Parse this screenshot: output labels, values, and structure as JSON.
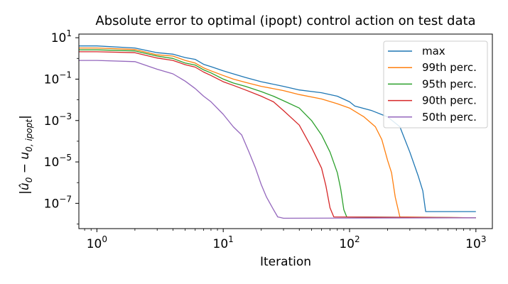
{
  "chart_data": {
    "type": "line",
    "title": "Absolute error to optimal (ipopt) control action on test data",
    "xlabel": "Iteration",
    "ylabel_parts": {
      "prefix": "|",
      "base1": "û",
      "sub1": "0",
      "minus": " − ",
      "base2": "u",
      "sub2": "0, ipopt",
      "suffix": "|"
    },
    "xscale": "log",
    "yscale": "log",
    "xlim": [
      0.72,
      1350
    ],
    "ylim": [
      6e-09,
      15
    ],
    "grid": false,
    "legend_position": "top-right",
    "x_ticks": [
      {
        "value": 1,
        "base": "10",
        "exp": "0"
      },
      {
        "value": 10,
        "base": "10",
        "exp": "1"
      },
      {
        "value": 100,
        "base": "10",
        "exp": "2"
      },
      {
        "value": 1000,
        "base": "10",
        "exp": "3"
      }
    ],
    "y_ticks": [
      {
        "value": 10,
        "base": "10",
        "exp": "1"
      },
      {
        "value": 0.1,
        "base": "10",
        "exp": "−1"
      },
      {
        "value": 0.001,
        "base": "10",
        "exp": "−3"
      },
      {
        "value": 1e-05,
        "base": "10",
        "exp": "−5"
      },
      {
        "value": 1e-07,
        "base": "10",
        "exp": "−7"
      }
    ],
    "series": [
      {
        "name": "max",
        "color": "#1f77b4",
        "points": [
          [
            0.72,
            4.0
          ],
          [
            1,
            4.0
          ],
          [
            2,
            3.2
          ],
          [
            3,
            1.9
          ],
          [
            4,
            1.6
          ],
          [
            5,
            1.1
          ],
          [
            6,
            0.9
          ],
          [
            7,
            0.52
          ],
          [
            8,
            0.4
          ],
          [
            10,
            0.25
          ],
          [
            12,
            0.18
          ],
          [
            15,
            0.12
          ],
          [
            20,
            0.075
          ],
          [
            30,
            0.045
          ],
          [
            40,
            0.03
          ],
          [
            60,
            0.022
          ],
          [
            80,
            0.015
          ],
          [
            100,
            0.008
          ],
          [
            110,
            0.005
          ],
          [
            150,
            0.003
          ],
          [
            200,
            0.0015
          ],
          [
            250,
            0.0005
          ],
          [
            300,
            3e-05
          ],
          [
            350,
            2e-06
          ],
          [
            380,
            4e-07
          ],
          [
            400,
            4e-08
          ],
          [
            1000,
            4e-08
          ]
        ]
      },
      {
        "name": "99th perc.",
        "color": "#ff7f0e",
        "points": [
          [
            0.72,
            3.2
          ],
          [
            1,
            3.2
          ],
          [
            2,
            2.7
          ],
          [
            3,
            1.5
          ],
          [
            4,
            1.3
          ],
          [
            5,
            0.8
          ],
          [
            6,
            0.6
          ],
          [
            7,
            0.35
          ],
          [
            8,
            0.25
          ],
          [
            10,
            0.15
          ],
          [
            12,
            0.1
          ],
          [
            15,
            0.07
          ],
          [
            20,
            0.045
          ],
          [
            30,
            0.028
          ],
          [
            40,
            0.018
          ],
          [
            60,
            0.011
          ],
          [
            80,
            0.0065
          ],
          [
            100,
            0.004
          ],
          [
            130,
            0.0015
          ],
          [
            160,
            0.0005
          ],
          [
            180,
            0.00012
          ],
          [
            200,
            1.2e-05
          ],
          [
            215,
            3e-06
          ],
          [
            230,
            2e-07
          ],
          [
            250,
            2.2e-08
          ],
          [
            1000,
            2e-08
          ]
        ]
      },
      {
        "name": "95th perc.",
        "color": "#2ca02c",
        "points": [
          [
            0.72,
            2.6
          ],
          [
            1,
            2.6
          ],
          [
            2,
            2.3
          ],
          [
            3,
            1.3
          ],
          [
            4,
            1.0
          ],
          [
            5,
            0.6
          ],
          [
            6,
            0.48
          ],
          [
            7,
            0.28
          ],
          [
            8,
            0.2
          ],
          [
            10,
            0.1
          ],
          [
            12,
            0.065
          ],
          [
            15,
            0.045
          ],
          [
            20,
            0.025
          ],
          [
            25,
            0.015
          ],
          [
            30,
            0.009
          ],
          [
            40,
            0.004
          ],
          [
            50,
            0.001
          ],
          [
            60,
            0.0002
          ],
          [
            70,
            3e-05
          ],
          [
            80,
            3e-06
          ],
          [
            85,
            5e-07
          ],
          [
            90,
            5e-08
          ],
          [
            95,
            2.2e-08
          ],
          [
            1000,
            2e-08
          ]
        ]
      },
      {
        "name": "90th perc.",
        "color": "#d62728",
        "points": [
          [
            0.72,
            2.1
          ],
          [
            1,
            2.1
          ],
          [
            2,
            1.9
          ],
          [
            3,
            1.05
          ],
          [
            4,
            0.8
          ],
          [
            5,
            0.5
          ],
          [
            6,
            0.38
          ],
          [
            7,
            0.22
          ],
          [
            8,
            0.15
          ],
          [
            10,
            0.075
          ],
          [
            12,
            0.05
          ],
          [
            15,
            0.03
          ],
          [
            20,
            0.015
          ],
          [
            25,
            0.008
          ],
          [
            30,
            0.003
          ],
          [
            40,
            0.0006
          ],
          [
            50,
            5e-05
          ],
          [
            60,
            5e-06
          ],
          [
            65,
            7e-07
          ],
          [
            70,
            6e-08
          ],
          [
            75,
            2.2e-08
          ],
          [
            1000,
            2e-08
          ]
        ]
      },
      {
        "name": "50th perc.",
        "color": "#9467bd",
        "points": [
          [
            0.72,
            0.8
          ],
          [
            1,
            0.8
          ],
          [
            2,
            0.7
          ],
          [
            3,
            0.3
          ],
          [
            4,
            0.18
          ],
          [
            5,
            0.08
          ],
          [
            6,
            0.035
          ],
          [
            7,
            0.015
          ],
          [
            8,
            0.008
          ],
          [
            10,
            0.002
          ],
          [
            12,
            0.0005
          ],
          [
            14,
            0.0002
          ],
          [
            16,
            3e-05
          ],
          [
            18,
            5e-06
          ],
          [
            20,
            8e-07
          ],
          [
            22,
            2e-07
          ],
          [
            25,
            5e-08
          ],
          [
            27,
            2.2e-08
          ],
          [
            30,
            1.9e-08
          ],
          [
            1000,
            2e-08
          ]
        ]
      }
    ]
  }
}
